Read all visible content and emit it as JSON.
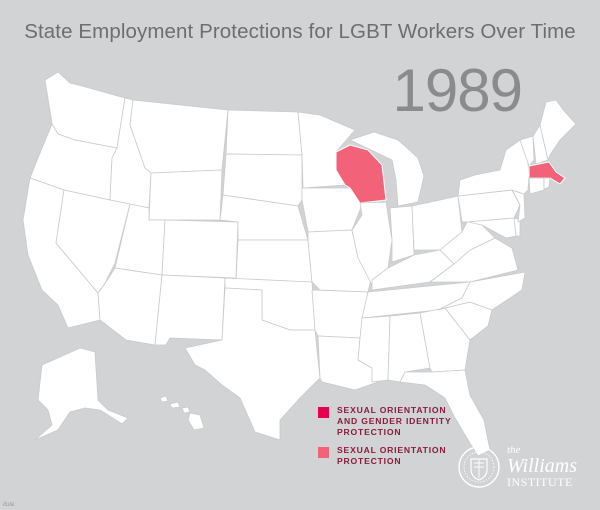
{
  "title": "State Employment Protections for LGBT Workers Over Time",
  "year": "1989",
  "colors": {
    "background": "#d1d3d4",
    "state_default": "#ffffff",
    "sexual_orientation_and_gender_identity": "#e8004f",
    "sexual_orientation": "#f2637a"
  },
  "map": {
    "region": "United States",
    "protected_states": [
      {
        "state": "Wisconsin",
        "category": "sexual_orientation"
      },
      {
        "state": "Massachusetts",
        "category": "sexual_orientation"
      }
    ]
  },
  "legend": {
    "items": [
      {
        "label": "SEXUAL ORIENTATION\nAND GENDER IDENTITY\nPROTECTION",
        "color": "#e8004f"
      },
      {
        "label": "SEXUAL ORIENTATION\nPROTECTION",
        "color": "#f2637a"
      }
    ]
  },
  "branding": {
    "the": "the",
    "name": "Williams",
    "institute": "INSTITUTE"
  },
  "footer_text": "itute"
}
